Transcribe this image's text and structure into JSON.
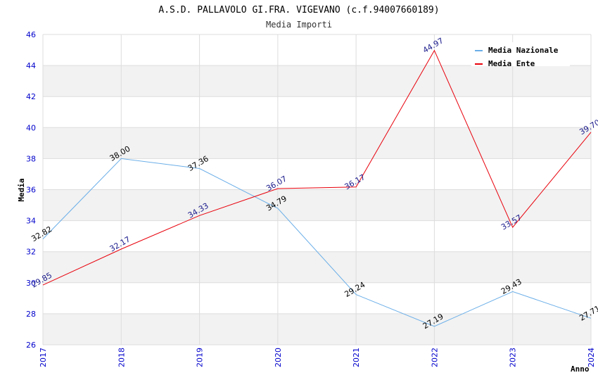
{
  "chart_data": {
    "type": "line",
    "title": "A.S.D. PALLAVOLO GI.FRA. VIGEVANO (c.f.94007660189)",
    "subtitle": "Media Importi",
    "xlabel": "Anno",
    "ylabel": "Media",
    "categories": [
      "2017",
      "2018",
      "2019",
      "2020",
      "2021",
      "2022",
      "2023",
      "2024"
    ],
    "ylim": [
      26,
      46
    ],
    "yticks": [
      26,
      28,
      30,
      32,
      34,
      36,
      38,
      40,
      42,
      44,
      46
    ],
    "ytick_labels": [
      "26",
      "28",
      "30",
      "32",
      "34",
      "36",
      "38",
      "40",
      "42",
      "44",
      "46"
    ],
    "grid": true,
    "legend_position": "top-right",
    "series": [
      {
        "name": "Media Nazionale",
        "color": "#6aaee8",
        "label_color": "#000000",
        "values": [
          32.82,
          38.0,
          37.36,
          34.79,
          29.24,
          27.19,
          29.43,
          27.71
        ],
        "labels": [
          "32.82",
          "38.00",
          "37.36",
          "34.79",
          "29.24",
          "27.19",
          "29.43",
          "27.71"
        ]
      },
      {
        "name": "Media Ente",
        "color": "#e8000b",
        "label_color": "#1a1a8c",
        "values": [
          29.85,
          32.17,
          34.33,
          36.07,
          36.17,
          44.97,
          33.57,
          39.7
        ],
        "labels": [
          "29.85",
          "32.17",
          "34.33",
          "36.07",
          "36.17",
          "44.97",
          "33.57",
          "39.70"
        ]
      }
    ]
  }
}
